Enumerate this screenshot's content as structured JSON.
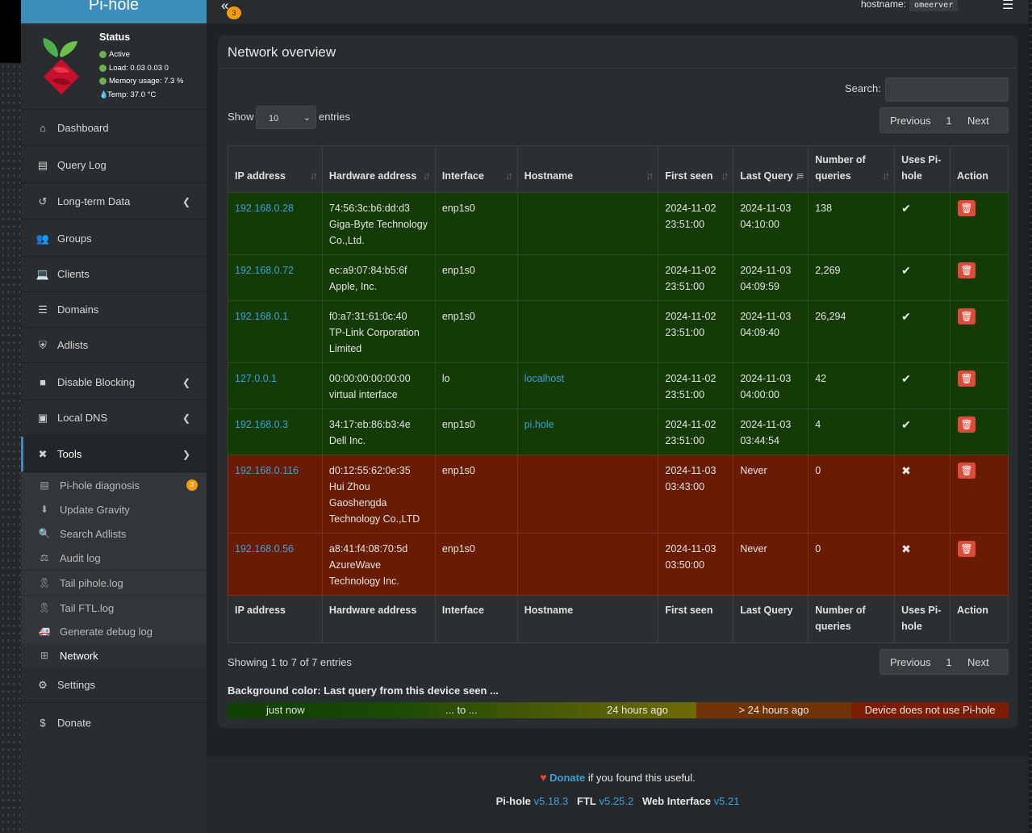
{
  "brand": "Pi-hole",
  "status": {
    "title": "Status",
    "active": "Active",
    "load": "Load:  0.03  0.03  0",
    "memory": "Memory usage:  7.3 %",
    "temp": "Temp: 37.0 °C"
  },
  "nav": [
    {
      "label": "Dashboard",
      "icon": "home-icon"
    },
    {
      "label": "Query Log",
      "icon": "file-icon"
    },
    {
      "label": "Long-term Data",
      "icon": "history-icon"
    },
    {
      "label": "Groups",
      "icon": "users-icon"
    },
    {
      "label": "Clients",
      "icon": "laptop-icon"
    },
    {
      "label": "Domains",
      "icon": "list-icon"
    },
    {
      "label": "Adlists",
      "icon": "shield-icon"
    },
    {
      "label": "Disable Blocking",
      "icon": "stop-icon"
    },
    {
      "label": "Local DNS",
      "icon": "address-book-icon"
    },
    {
      "label": "Tools",
      "icon": "tools-icon"
    },
    {
      "label": "Settings",
      "icon": "gear-icon"
    },
    {
      "label": "Donate",
      "icon": "donate-icon"
    }
  ],
  "tools_sub": [
    {
      "label": "Pi-hole diagnosis",
      "badge": "3"
    },
    {
      "label": "Update Gravity"
    },
    {
      "label": "Search Adlists"
    },
    {
      "label": "Audit log"
    },
    {
      "label": "Tail pihole.log"
    },
    {
      "label": "Tail FTL.log"
    },
    {
      "label": "Generate debug log"
    },
    {
      "label": "Network"
    }
  ],
  "topbar": {
    "badge": "3",
    "hostname_label": "hostname:",
    "hostname_value": "omeerver"
  },
  "panel": {
    "title": "Network overview",
    "search_label": "Search:",
    "show_label": "Show",
    "entries_value": "10",
    "entries_label": "entries",
    "prev": "Previous",
    "page": "1",
    "next": "Next",
    "showing": "Showing 1 to 7 of 7 entries",
    "bg_title": "Background color: Last query from this device seen ...",
    "legend": {
      "just_now": "just now",
      "to": "... to ...",
      "h24": "24 hours ago",
      "gt24": "> 24 hours ago",
      "no_pihole": "Device does not use Pi-hole"
    }
  },
  "table": {
    "headers": [
      "IP address",
      "Hardware address",
      "Interface",
      "Hostname",
      "First seen",
      "Last Query",
      "Number of queries",
      "Uses Pi-hole",
      "Action"
    ],
    "rows": [
      {
        "ip": "192.168.0.28",
        "hw": "74:56:3c:b6:dd:d3",
        "vendor": "Giga-Byte Technology Co.,Ltd.",
        "iface": "enp1s0",
        "host": "",
        "first": "2024-11-02 23:51:00",
        "last": "2024-11-03 04:10:00",
        "count": "138",
        "uses": "✔"
      },
      {
        "ip": "192.168.0.72",
        "hw": "ec:a9:07:84:b5:6f",
        "vendor": "Apple, Inc.",
        "iface": "enp1s0",
        "host": "",
        "first": "2024-11-02 23:51:00",
        "last": "2024-11-03 04:09:59",
        "count": "2,269",
        "uses": "✔"
      },
      {
        "ip": "192.168.0.1",
        "hw": "f0:a7:31:61:0c:40",
        "vendor": "TP-Link Corporation Limited",
        "iface": "enp1s0",
        "host": "",
        "first": "2024-11-02 23:51:00",
        "last": "2024-11-03 04:09:40",
        "count": "26,294",
        "uses": "✔"
      },
      {
        "ip": "127.0.0.1",
        "hw": "00:00:00:00:00:00",
        "vendor": "virtual interface",
        "iface": "lo",
        "host": "localhost",
        "first": "2024-11-02 23:51:00",
        "last": "2024-11-03 04:00:00",
        "count": "42",
        "uses": "✔"
      },
      {
        "ip": "192.168.0.3",
        "hw": "34:17:eb:86:b3:4e",
        "vendor": "Dell Inc.",
        "iface": "enp1s0",
        "host": "pi.hole",
        "first": "2024-11-02 23:51:00",
        "last": "2024-11-03 03:44:54",
        "count": "4",
        "uses": "✔"
      },
      {
        "ip": "192.168.0.116",
        "hw": "d0:12:55:62:0e:35",
        "vendor": "Hui Zhou Gaoshengda Technology Co.,LTD",
        "iface": "enp1s0",
        "host": "",
        "first": "2024-11-03 03:43:00",
        "last": "Never",
        "count": "0",
        "uses": "✖"
      },
      {
        "ip": "192.168.0.56",
        "hw": "a8:41:f4:08:70:5d",
        "vendor": "AzureWave Technology Inc.",
        "iface": "enp1s0",
        "host": "",
        "first": "2024-11-03 03:50:00",
        "last": "Never",
        "count": "0",
        "uses": "✖"
      }
    ]
  },
  "footer": {
    "donate": "Donate",
    "donate_tail": "if you found this useful.",
    "pihole_label": "Pi-hole",
    "pihole_ver": "v5.18.3",
    "ftl_label": "FTL",
    "ftl_ver": "v5.25.2",
    "web_label": "Web Interface",
    "web_ver": "v5.21"
  },
  "colors": {
    "accent": "#3c8dbc",
    "used": "#143b06",
    "unused": "#6a1b03",
    "badge": "#f39c12",
    "delete": "#dd4b39"
  }
}
